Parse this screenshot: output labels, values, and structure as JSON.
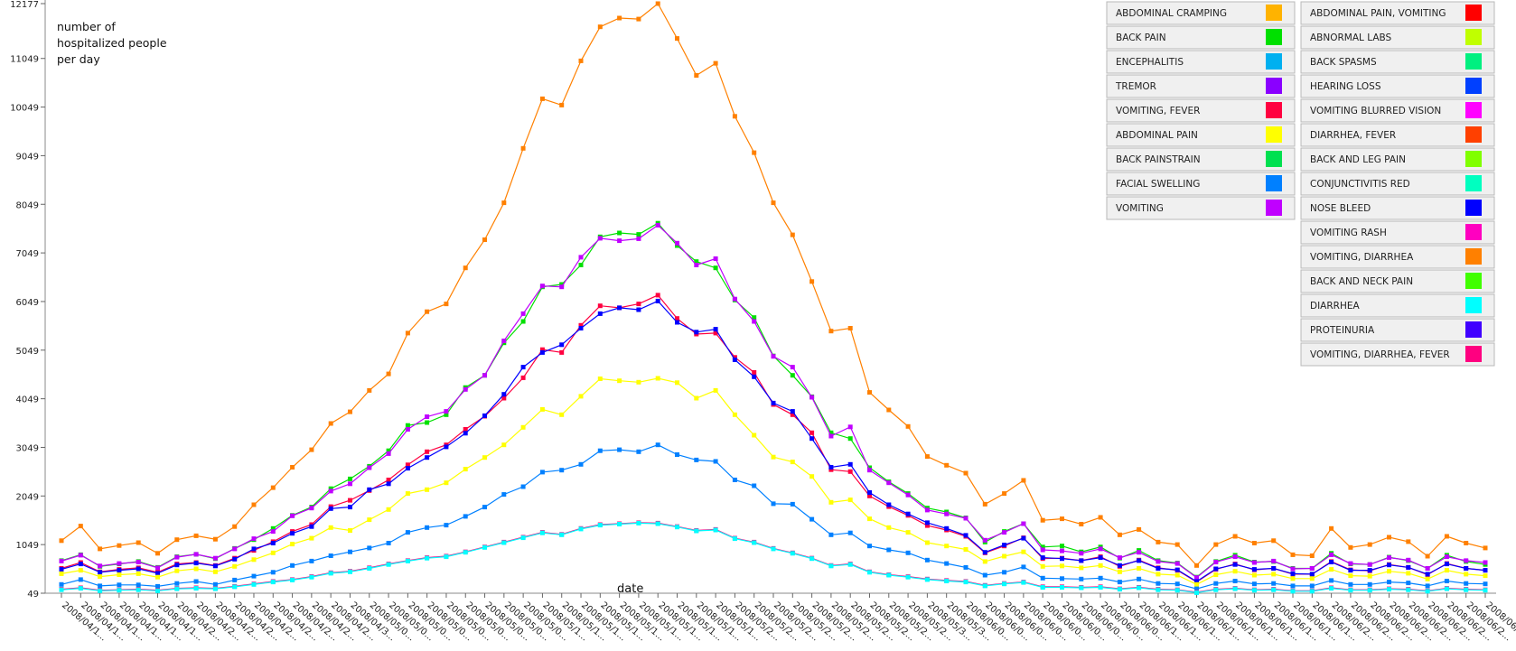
{
  "chart_data": {
    "type": "line",
    "title": "",
    "ylabel_lines": [
      "number of",
      "hospitalized people",
      "per day"
    ],
    "xlabel": "date",
    "ylim": [
      49,
      12177
    ],
    "yticks": [
      49,
      1049,
      2049,
      3049,
      4049,
      5049,
      6049,
      7049,
      8049,
      9049,
      10049,
      11049,
      12177
    ],
    "x_tick_labels": [
      "2008/04/1...",
      "2008/04/1...",
      "2008/04/1...",
      "2008/04/1...",
      "2008/04/1...",
      "2008/04/1...",
      "2008/04/2...",
      "2008/04/2...",
      "2008/04/2...",
      "2008/04/2...",
      "2008/04/2...",
      "2008/04/2...",
      "2008/04/2...",
      "2008/04/2...",
      "2008/04/2...",
      "2008/04/3...",
      "2008/05/0...",
      "2008/05/0...",
      "2008/05/0...",
      "2008/05/0...",
      "2008/05/0...",
      "2008/05/0...",
      "2008/05/0...",
      "2008/05/0...",
      "2008/05/0...",
      "2008/05/1...",
      "2008/05/1...",
      "2008/05/1...",
      "2008/05/1...",
      "2008/05/1...",
      "2008/05/1...",
      "2008/05/1...",
      "2008/05/1...",
      "2008/05/1...",
      "2008/05/1...",
      "2008/05/2...",
      "2008/05/2...",
      "2008/05/2...",
      "2008/05/2...",
      "2008/05/2...",
      "2008/05/2...",
      "2008/05/2...",
      "2008/05/2...",
      "2008/05/2...",
      "2008/05/2...",
      "2008/05/3...",
      "2008/05/3...",
      "2008/06/0...",
      "2008/06/0...",
      "2008/06/0...",
      "2008/06/0...",
      "2008/06/0...",
      "2008/06/0...",
      "2008/06/0...",
      "2008/06/0...",
      "2008/06/0...",
      "2008/06/1...",
      "2008/06/1...",
      "2008/06/1...",
      "2008/06/1...",
      "2008/06/1...",
      "2008/06/1...",
      "2008/06/1...",
      "2008/06/1...",
      "2008/06/1...",
      "2008/06/1...",
      "2008/06/2...",
      "2008/06/2...",
      "2008/06/2...",
      "2008/06/2...",
      "2008/06/2...",
      "2008/06/2...",
      "2008/06/2...",
      "2008/06/2...",
      "2008/06/2..."
    ],
    "legend_columns": [
      [
        {
          "name": "ABDOMINAL CRAMPING",
          "color": "#FFB300"
        },
        {
          "name": "BACK PAIN",
          "color": "#00E000"
        },
        {
          "name": "ENCEPHALITIS",
          "color": "#00B0F0"
        },
        {
          "name": "TREMOR",
          "color": "#8A00FF"
        },
        {
          "name": "VOMITING, FEVER",
          "color": "#FF0040"
        },
        {
          "name": "ABDOMINAL PAIN",
          "color": "#FFFF00"
        },
        {
          "name": "BACK PAINSTRAIN",
          "color": "#00E050"
        },
        {
          "name": "FACIAL SWELLING",
          "color": "#0080FF"
        },
        {
          "name": "VOMITING",
          "color": "#C000FF"
        }
      ],
      [
        {
          "name": "ABDOMINAL PAIN, VOMITING",
          "color": "#FF0000"
        },
        {
          "name": "ABNORMAL LABS",
          "color": "#C0FF00"
        },
        {
          "name": "BACK SPASMS",
          "color": "#00F080"
        },
        {
          "name": "HEARING LOSS",
          "color": "#0040FF"
        },
        {
          "name": "VOMITING  BLURRED VISION",
          "color": "#FF00FF"
        },
        {
          "name": "DIARRHEA, FEVER",
          "color": "#FF4000"
        },
        {
          "name": "BACK AND LEG PAIN",
          "color": "#80FF00"
        },
        {
          "name": "CONJUNCTIVITIS RED",
          "color": "#00FFC0"
        },
        {
          "name": "NOSE BLEED",
          "color": "#0000FF"
        },
        {
          "name": "VOMITING RASH",
          "color": "#FF00C0"
        },
        {
          "name": "VOMITING, DIARRHEA",
          "color": "#FF8000"
        },
        {
          "name": "BACK AND NECK PAIN",
          "color": "#40FF00"
        },
        {
          "name": "DIARRHEA",
          "color": "#00FFFF"
        },
        {
          "name": "PROTEINURIA",
          "color": "#4000FF"
        },
        {
          "name": "VOMITING, DIARRHEA, FEVER",
          "color": "#FF0080"
        }
      ]
    ],
    "series": [
      {
        "name": "VOMITING, DIARRHEA",
        "color": "#FF8000",
        "values": [
          1130,
          1430,
          960,
          1030,
          1090,
          870,
          1150,
          1230,
          1160,
          1420,
          1870,
          2220,
          2640,
          3000,
          3540,
          3780,
          4220,
          4560,
          5400,
          5840,
          6000,
          6740,
          7320,
          8080,
          9200,
          10220,
          10090,
          11000,
          11700,
          11880,
          11860,
          12177,
          11460,
          10700,
          10950,
          9860,
          9110,
          8080,
          7420,
          6460,
          5440,
          5500,
          4180,
          3820,
          3480,
          2860,
          2680,
          2520,
          1880,
          2100,
          2370,
          1550,
          1580,
          1470,
          1610,
          1250,
          1360,
          1100,
          1050,
          620,
          1050,
          1220,
          1080,
          1130,
          840,
          820,
          1380,
          990,
          1050,
          1200,
          1110,
          810,
          1220,
          1080,
          980
        ]
      },
      {
        "name": "BACK PAIN",
        "color": "#00E000",
        "values": [
          720,
          840,
          600,
          650,
          700,
          580,
          800,
          850,
          760,
          970,
          1150,
          1380,
          1650,
          1820,
          2200,
          2400,
          2660,
          2980,
          3500,
          3560,
          3720,
          4280,
          4530,
          5200,
          5640,
          6350,
          6400,
          6800,
          7380,
          7460,
          7430,
          7660,
          7200,
          6870,
          6740,
          6080,
          5720,
          4930,
          4530,
          4090,
          3350,
          3230,
          2630,
          2340,
          2100,
          1800,
          1720,
          1600,
          1100,
          1320,
          1480,
          1000,
          1020,
          900,
          1000,
          770,
          930,
          720,
          670,
          380,
          700,
          830,
          690,
          700,
          560,
          560,
          870,
          650,
          640,
          790,
          720,
          560,
          830,
          700,
          640
        ]
      },
      {
        "name": "VOMITING",
        "color": "#C000FF",
        "values": [
          710,
          830,
          610,
          660,
          690,
          570,
          790,
          850,
          770,
          960,
          1170,
          1320,
          1640,
          1800,
          2150,
          2300,
          2630,
          2920,
          3420,
          3680,
          3790,
          4240,
          4530,
          5240,
          5800,
          6370,
          6350,
          6960,
          7350,
          7300,
          7340,
          7620,
          7250,
          6800,
          6930,
          6100,
          5640,
          4920,
          4700,
          4080,
          3280,
          3470,
          2580,
          2320,
          2070,
          1760,
          1680,
          1590,
          1140,
          1300,
          1480,
          940,
          920,
          870,
          960,
          780,
          890,
          700,
          660,
          370,
          690,
          800,
          680,
          710,
          550,
          560,
          840,
          660,
          640,
          780,
          730,
          560,
          800,
          720,
          680
        ]
      },
      {
        "name": "VOMITING, FEVER",
        "color": "#FF0040",
        "values": [
          560,
          680,
          490,
          540,
          570,
          480,
          650,
          680,
          620,
          770,
          930,
          1110,
          1320,
          1460,
          1830,
          1960,
          2160,
          2380,
          2690,
          2960,
          3100,
          3420,
          3690,
          4060,
          4480,
          5060,
          5000,
          5560,
          5960,
          5920,
          6000,
          6180,
          5700,
          5380,
          5400,
          4900,
          4590,
          3930,
          3720,
          3350,
          2590,
          2550,
          2050,
          1830,
          1650,
          1440,
          1350,
          1220,
          880,
          1020,
          1190,
          760,
          770,
          720,
          800,
          600,
          730,
          570,
          520,
          280,
          540,
          650,
          530,
          560,
          440,
          440,
          700,
          530,
          510,
          640,
          580,
          430,
          660,
          560,
          520
        ]
      },
      {
        "name": "NOSE BLEED",
        "color": "#0000FF",
        "values": [
          540,
          650,
          480,
          520,
          550,
          460,
          630,
          670,
          610,
          750,
          960,
          1080,
          1280,
          1420,
          1790,
          1820,
          2180,
          2300,
          2620,
          2840,
          3060,
          3340,
          3700,
          4140,
          4700,
          5000,
          5160,
          5500,
          5800,
          5920,
          5880,
          6060,
          5620,
          5420,
          5480,
          4850,
          4500,
          3960,
          3790,
          3230,
          2640,
          2700,
          2120,
          1870,
          1680,
          1500,
          1380,
          1240,
          890,
          1040,
          1180,
          780,
          760,
          720,
          780,
          620,
          720,
          560,
          530,
          290,
          550,
          640,
          540,
          560,
          450,
          440,
          690,
          520,
          520,
          630,
          580,
          440,
          650,
          560,
          520
        ]
      },
      {
        "name": "ABDOMINAL PAIN",
        "color": "#FFFF00",
        "values": [
          450,
          520,
          390,
          430,
          450,
          380,
          510,
          550,
          490,
          600,
          740,
          880,
          1060,
          1180,
          1400,
          1340,
          1560,
          1770,
          2100,
          2180,
          2320,
          2600,
          2840,
          3100,
          3460,
          3830,
          3720,
          4100,
          4460,
          4420,
          4390,
          4470,
          4380,
          4060,
          4220,
          3720,
          3300,
          2850,
          2750,
          2450,
          1920,
          1970,
          1580,
          1400,
          1300,
          1090,
          1020,
          950,
          700,
          810,
          900,
          600,
          610,
          570,
          620,
          490,
          560,
          440,
          420,
          230,
          430,
          500,
          420,
          440,
          350,
          350,
          540,
          410,
          400,
          500,
          460,
          340,
          520,
          440,
          410
        ]
      },
      {
        "name": "FACIAL SWELLING",
        "color": "#0080FF",
        "values": [
          230,
          330,
          200,
          220,
          220,
          190,
          250,
          290,
          230,
          320,
          400,
          480,
          620,
          710,
          820,
          900,
          980,
          1080,
          1300,
          1400,
          1450,
          1630,
          1820,
          2080,
          2240,
          2540,
          2580,
          2700,
          2980,
          3000,
          2960,
          3100,
          2900,
          2790,
          2760,
          2380,
          2260,
          1890,
          1880,
          1570,
          1250,
          1290,
          1020,
          940,
          880,
          730,
          660,
          580,
          420,
          480,
          590,
          360,
          350,
          340,
          360,
          280,
          340,
          250,
          240,
          140,
          250,
          300,
          240,
          250,
          200,
          200,
          310,
          230,
          230,
          280,
          260,
          200,
          300,
          250,
          240
        ]
      },
      {
        "name": "VOMITING, DIARRHEA, FEVER",
        "color": "#FF0080",
        "values": [
          130,
          160,
          110,
          120,
          130,
          110,
          150,
          160,
          150,
          190,
          240,
          290,
          330,
          390,
          470,
          500,
          570,
          650,
          720,
          780,
          810,
          900,
          1000,
          1100,
          1200,
          1300,
          1260,
          1380,
          1460,
          1480,
          1500,
          1490,
          1420,
          1340,
          1360,
          1180,
          1100,
          970,
          880,
          770,
          620,
          650,
          490,
          430,
          390,
          340,
          310,
          290,
          210,
          250,
          280,
          180,
          180,
          170,
          180,
          140,
          170,
          130,
          120,
          70,
          130,
          150,
          120,
          130,
          100,
          100,
          160,
          120,
          120,
          140,
          130,
          100,
          150,
          130,
          120
        ]
      },
      {
        "name": "DIARRHEA",
        "color": "#00FFFF",
        "values": [
          120,
          150,
          100,
          110,
          120,
          100,
          140,
          150,
          140,
          180,
          230,
          280,
          320,
          380,
          460,
          490,
          560,
          640,
          710,
          770,
          800,
          890,
          990,
          1090,
          1190,
          1290,
          1250,
          1370,
          1450,
          1470,
          1490,
          1480,
          1410,
          1330,
          1350,
          1170,
          1090,
          960,
          870,
          760,
          610,
          640,
          480,
          420,
          380,
          330,
          300,
          280,
          200,
          240,
          270,
          170,
          170,
          160,
          170,
          130,
          160,
          120,
          110,
          60,
          120,
          140,
          110,
          120,
          90,
          90,
          150,
          110,
          110,
          130,
          120,
          90,
          140,
          120,
          110
        ]
      }
    ]
  }
}
